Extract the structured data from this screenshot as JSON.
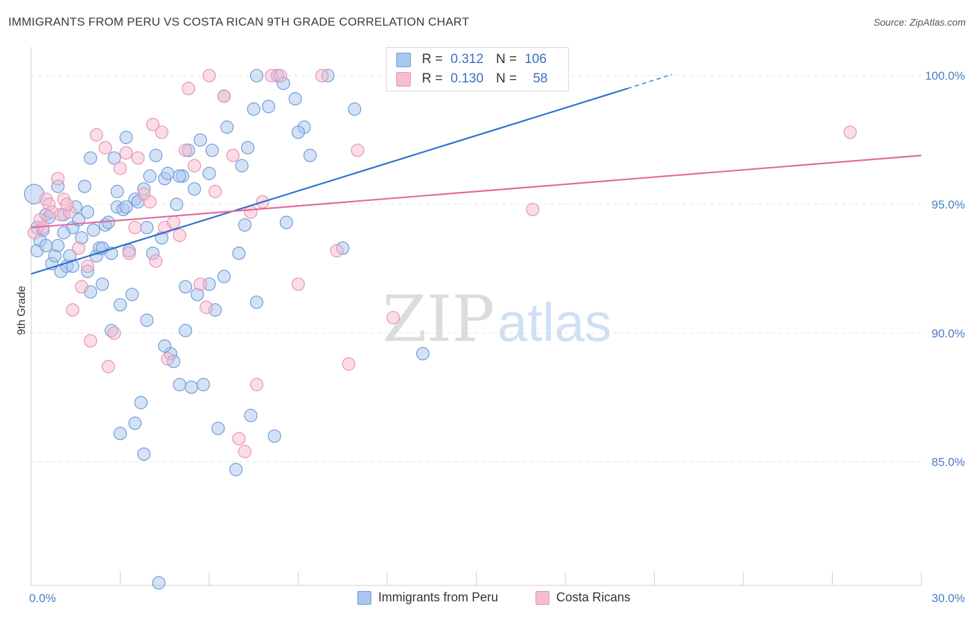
{
  "title": "IMMIGRANTS FROM PERU VS COSTA RICAN 9TH GRADE CORRELATION CHART",
  "source": "Source: ZipAtlas.com",
  "watermark": {
    "zip": "ZIP",
    "atlas": "atlas"
  },
  "stats": {
    "peru": {
      "r_label": "R =",
      "r": "0.312",
      "n_label": "N =",
      "n": "106"
    },
    "costa": {
      "r_label": "R =",
      "r": "0.130",
      "n_label": "N =",
      "n": "58"
    }
  },
  "legend": {
    "peru": "Immigrants from Peru",
    "costa": "Costa Ricans"
  },
  "colors": {
    "peru_fill": "#a9c6ee",
    "peru_stroke": "#6f9bd8",
    "peru_line": "#2f6fcf",
    "costa_fill": "#f6bcd0",
    "costa_stroke": "#e991b1",
    "costa_line": "#e06a99"
  },
  "chart_data": {
    "type": "scatter",
    "xlabel": "",
    "ylabel": "9th Grade",
    "xlim": [
      0,
      30
    ],
    "ylim": [
      80.2,
      101
    ],
    "x_tick_labels": [
      {
        "v": 0,
        "label": "0.0%"
      },
      {
        "v": 30,
        "label": "30.0%"
      }
    ],
    "y_tick_labels": [
      {
        "v": 85,
        "label": "85.0%"
      },
      {
        "v": 90,
        "label": "90.0%"
      },
      {
        "v": 95,
        "label": "95.0%"
      },
      {
        "v": 100,
        "label": "100.0%"
      }
    ],
    "series": [
      {
        "name": "Immigrants from Peru",
        "trend": {
          "x0": 0,
          "y0": 92.3,
          "x1": 20.1,
          "y1": 99.5,
          "dash_to_x": 21.6,
          "dash_to_y": 100.05
        },
        "points": [
          [
            0.1,
            95.4
          ],
          [
            0.2,
            94.1
          ],
          [
            0.2,
            93.2
          ],
          [
            0.3,
            93.6
          ],
          [
            0.4,
            94.0
          ],
          [
            0.5,
            94.6
          ],
          [
            0.5,
            93.4
          ],
          [
            0.7,
            92.7
          ],
          [
            0.8,
            93.0
          ],
          [
            0.9,
            95.7
          ],
          [
            0.9,
            93.4
          ],
          [
            1.0,
            92.4
          ],
          [
            1.1,
            94.6
          ],
          [
            1.2,
            92.6
          ],
          [
            1.3,
            93.0
          ],
          [
            1.4,
            94.1
          ],
          [
            1.5,
            94.9
          ],
          [
            1.6,
            94.4
          ],
          [
            1.7,
            93.7
          ],
          [
            1.8,
            95.7
          ],
          [
            1.9,
            92.4
          ],
          [
            2.0,
            91.6
          ],
          [
            2.1,
            94.0
          ],
          [
            2.2,
            93.0
          ],
          [
            2.3,
            93.3
          ],
          [
            2.4,
            91.9
          ],
          [
            2.5,
            94.2
          ],
          [
            2.6,
            94.3
          ],
          [
            2.7,
            90.1
          ],
          [
            2.8,
            96.8
          ],
          [
            2.9,
            94.9
          ],
          [
            3.0,
            91.1
          ],
          [
            3.1,
            94.8
          ],
          [
            3.2,
            97.6
          ],
          [
            3.3,
            93.2
          ],
          [
            3.4,
            91.5
          ],
          [
            3.5,
            95.2
          ],
          [
            3.6,
            95.1
          ],
          [
            3.7,
            87.3
          ],
          [
            3.8,
            95.6
          ],
          [
            3.9,
            94.1
          ],
          [
            4.0,
            96.1
          ],
          [
            4.1,
            93.1
          ],
          [
            4.2,
            96.9
          ],
          [
            4.4,
            93.7
          ],
          [
            4.5,
            96.0
          ],
          [
            4.6,
            96.2
          ],
          [
            4.7,
            89.2
          ],
          [
            4.8,
            88.9
          ],
          [
            4.9,
            95.0
          ],
          [
            5.0,
            88.0
          ],
          [
            5.1,
            96.1
          ],
          [
            5.2,
            91.8
          ],
          [
            5.3,
            97.1
          ],
          [
            5.4,
            87.9
          ],
          [
            5.5,
            95.6
          ],
          [
            5.6,
            91.5
          ],
          [
            5.7,
            97.5
          ],
          [
            6.0,
            96.2
          ],
          [
            6.1,
            97.1
          ],
          [
            6.2,
            90.9
          ],
          [
            6.3,
            86.3
          ],
          [
            6.5,
            99.2
          ],
          [
            6.6,
            98.0
          ],
          [
            6.9,
            84.7
          ],
          [
            7.0,
            93.1
          ],
          [
            7.1,
            96.5
          ],
          [
            7.2,
            94.2
          ],
          [
            7.3,
            97.2
          ],
          [
            7.5,
            98.7
          ],
          [
            7.6,
            100.0
          ],
          [
            8.0,
            98.8
          ],
          [
            8.3,
            100.0
          ],
          [
            8.5,
            99.7
          ],
          [
            8.6,
            94.3
          ],
          [
            8.9,
            99.1
          ],
          [
            9.2,
            98.0
          ],
          [
            9.4,
            96.9
          ],
          [
            10.0,
            100.0
          ],
          [
            10.5,
            93.3
          ],
          [
            10.9,
            98.7
          ],
          [
            13.2,
            89.2
          ],
          [
            2.9,
            95.5
          ],
          [
            3.0,
            86.1
          ],
          [
            3.5,
            86.5
          ],
          [
            3.8,
            85.3
          ],
          [
            3.9,
            90.5
          ],
          [
            4.3,
            80.3
          ],
          [
            4.5,
            89.5
          ],
          [
            5.2,
            90.1
          ],
          [
            5.8,
            88.0
          ],
          [
            6.0,
            91.9
          ],
          [
            7.4,
            86.8
          ],
          [
            7.6,
            91.2
          ],
          [
            8.2,
            86.0
          ],
          [
            1.9,
            94.7
          ],
          [
            2.4,
            93.3
          ],
          [
            2.7,
            93.1
          ],
          [
            3.2,
            94.9
          ],
          [
            5.0,
            96.1
          ],
          [
            6.5,
            92.2
          ],
          [
            9.0,
            97.8
          ],
          [
            1.1,
            93.9
          ],
          [
            2.0,
            96.8
          ],
          [
            1.4,
            92.6
          ],
          [
            0.6,
            94.5
          ]
        ]
      },
      {
        "name": "Costa Ricans",
        "trend": {
          "x0": 0,
          "y0": 94.1,
          "x1": 30,
          "y1": 96.9
        },
        "points": [
          [
            0.1,
            93.9
          ],
          [
            0.3,
            94.4
          ],
          [
            0.4,
            94.1
          ],
          [
            0.5,
            95.2
          ],
          [
            0.6,
            95.0
          ],
          [
            0.7,
            94.7
          ],
          [
            0.9,
            96.0
          ],
          [
            1.0,
            94.6
          ],
          [
            1.1,
            95.2
          ],
          [
            1.3,
            94.7
          ],
          [
            1.4,
            90.9
          ],
          [
            1.6,
            93.3
          ],
          [
            1.7,
            91.8
          ],
          [
            1.9,
            92.6
          ],
          [
            2.0,
            89.7
          ],
          [
            2.2,
            97.7
          ],
          [
            2.5,
            97.2
          ],
          [
            2.6,
            88.7
          ],
          [
            2.8,
            90.0
          ],
          [
            3.0,
            96.4
          ],
          [
            3.2,
            97.0
          ],
          [
            3.3,
            93.1
          ],
          [
            3.5,
            94.1
          ],
          [
            3.6,
            96.8
          ],
          [
            3.8,
            95.4
          ],
          [
            4.0,
            95.1
          ],
          [
            4.2,
            92.8
          ],
          [
            4.4,
            97.8
          ],
          [
            4.5,
            94.1
          ],
          [
            4.6,
            89.0
          ],
          [
            4.8,
            94.3
          ],
          [
            5.0,
            93.8
          ],
          [
            5.2,
            97.1
          ],
          [
            5.3,
            99.5
          ],
          [
            5.5,
            96.5
          ],
          [
            5.7,
            91.9
          ],
          [
            5.9,
            91.0
          ],
          [
            6.2,
            95.5
          ],
          [
            6.5,
            99.2
          ],
          [
            6.8,
            96.9
          ],
          [
            7.0,
            85.9
          ],
          [
            7.2,
            85.4
          ],
          [
            7.4,
            94.7
          ],
          [
            7.6,
            88.0
          ],
          [
            7.8,
            95.1
          ],
          [
            8.1,
            100.0
          ],
          [
            8.4,
            100.0
          ],
          [
            9.0,
            91.9
          ],
          [
            9.8,
            100.0
          ],
          [
            10.3,
            93.2
          ],
          [
            10.7,
            88.8
          ],
          [
            11.0,
            97.1
          ],
          [
            12.2,
            90.6
          ],
          [
            16.9,
            94.8
          ],
          [
            27.6,
            97.8
          ],
          [
            6.0,
            100.0
          ],
          [
            4.1,
            98.1
          ],
          [
            1.2,
            95.0
          ]
        ]
      }
    ]
  }
}
